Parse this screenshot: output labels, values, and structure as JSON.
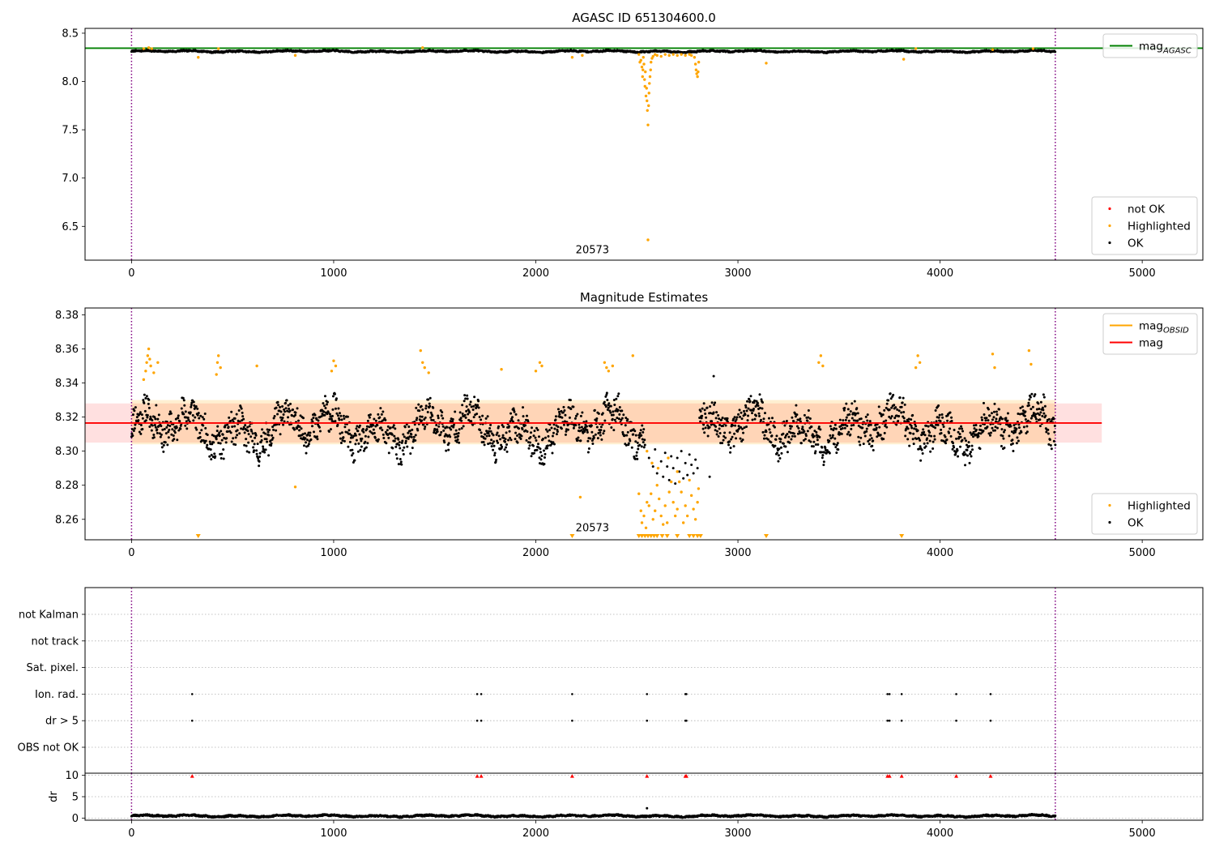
{
  "chart_data": [
    {
      "id": "top",
      "type": "scatter",
      "title": "AGASC ID 651304600.0",
      "xlim": [
        -230,
        5300
      ],
      "ylim": [
        6.15,
        8.55
      ],
      "xticks": [
        0,
        1000,
        2000,
        3000,
        4000,
        5000
      ],
      "yticks": [
        6.5,
        7.0,
        7.5,
        8.0,
        8.5
      ],
      "ytick_format": 1,
      "vlines": [
        0,
        4570
      ],
      "vline_color": "#800080",
      "annotations": [
        {
          "text": "20573",
          "x": 2280,
          "y": 6.22
        }
      ],
      "hlines": [
        {
          "name": "mag",
          "sub": "AGASC",
          "y": 8.345,
          "xmin": -230,
          "xmax": 5300,
          "color": "#008000"
        }
      ],
      "ok_series": {
        "name": "OK",
        "color": "#000000",
        "base": 8.312,
        "amp": 0.012
      },
      "points": {
        "orange": [
          [
            60,
            8.34
          ],
          [
            85,
            8.35
          ],
          [
            100,
            8.34
          ],
          [
            330,
            8.25
          ],
          [
            430,
            8.34
          ],
          [
            810,
            8.27
          ],
          [
            1440,
            8.35
          ],
          [
            2180,
            8.25
          ],
          [
            2230,
            8.27
          ],
          [
            2510,
            8.28
          ],
          [
            2515,
            8.2
          ],
          [
            2520,
            8.22
          ],
          [
            2525,
            8.15
          ],
          [
            2528,
            8.05
          ],
          [
            2530,
            8.12
          ],
          [
            2532,
            8.25
          ],
          [
            2535,
            8.18
          ],
          [
            2538,
            8.02
          ],
          [
            2540,
            7.95
          ],
          [
            2542,
            8.1
          ],
          [
            2545,
            7.85
          ],
          [
            2548,
            7.93
          ],
          [
            2550,
            7.8
          ],
          [
            2552,
            7.7
          ],
          [
            2555,
            7.55
          ],
          [
            2558,
            7.75
          ],
          [
            2560,
            7.88
          ],
          [
            2562,
            7.98
          ],
          [
            2565,
            8.05
          ],
          [
            2568,
            8.12
          ],
          [
            2570,
            8.2
          ],
          [
            2575,
            8.24
          ],
          [
            2580,
            8.26
          ],
          [
            2590,
            8.28
          ],
          [
            2600,
            8.27
          ],
          [
            2620,
            8.26
          ],
          [
            2640,
            8.28
          ],
          [
            2660,
            8.27
          ],
          [
            2680,
            8.28
          ],
          [
            2700,
            8.27
          ],
          [
            2720,
            8.28
          ],
          [
            2740,
            8.27
          ],
          [
            2760,
            8.28
          ],
          [
            2770,
            8.27
          ],
          [
            2785,
            8.25
          ],
          [
            2790,
            8.18
          ],
          [
            2793,
            8.12
          ],
          [
            2796,
            8.08
          ],
          [
            2800,
            8.05
          ],
          [
            2803,
            8.1
          ],
          [
            2806,
            8.2
          ],
          [
            2555,
            6.36
          ],
          [
            3140,
            8.19
          ],
          [
            3820,
            8.23
          ],
          [
            3880,
            8.34
          ],
          [
            4260,
            8.33
          ],
          [
            4460,
            8.34
          ]
        ],
        "red": [],
        "black_extra": []
      },
      "legends": [
        {
          "position": "upper-right",
          "entries": [
            {
              "label": "mag",
              "sub": "AGASC",
              "kind": "line",
              "color": "#008000"
            }
          ]
        },
        {
          "position": "lower-right",
          "entries": [
            {
              "label": "not OK",
              "kind": "dot",
              "color": "#ff0000"
            },
            {
              "label": "Highlighted",
              "kind": "dot",
              "color": "#ffa500"
            },
            {
              "label": "OK",
              "kind": "dot",
              "color": "#000000"
            }
          ]
        }
      ]
    },
    {
      "id": "middle",
      "type": "scatter",
      "title": "Magnitude Estimates",
      "xlim": [
        -230,
        5300
      ],
      "ylim": [
        8.248,
        8.384
      ],
      "xticks": [
        0,
        1000,
        2000,
        3000,
        4000,
        5000
      ],
      "yticks": [
        8.26,
        8.28,
        8.3,
        8.32,
        8.34,
        8.36,
        8.38
      ],
      "ytick_format": 2,
      "vlines": [
        0,
        4570
      ],
      "vline_color": "#800080",
      "annotations": [
        {
          "text": "20573",
          "x": 2280,
          "y": 8.253
        }
      ],
      "bands": [
        {
          "ymin": 8.305,
          "ymax": 8.328,
          "xmin": -230,
          "xmax": 4800,
          "color": "#ff0000",
          "opacity": 0.12
        },
        {
          "ymin": 8.304,
          "ymax": 8.33,
          "xmin": 0,
          "xmax": 4570,
          "color": "#ffa500",
          "opacity": 0.18
        }
      ],
      "hlines": [
        {
          "name": "mag",
          "sub": "",
          "y": 8.3165,
          "xmin": -230,
          "xmax": 4800,
          "color": "#ff0000"
        }
      ],
      "ok_series": {
        "name": "OK",
        "color": "#000000",
        "base": 8.313,
        "amp": 0.016
      },
      "points": {
        "orange": [
          [
            60,
            8.342
          ],
          [
            70,
            8.347
          ],
          [
            75,
            8.352
          ],
          [
            80,
            8.356
          ],
          [
            85,
            8.36
          ],
          [
            90,
            8.354
          ],
          [
            95,
            8.35
          ],
          [
            110,
            8.346
          ],
          [
            130,
            8.352
          ],
          [
            420,
            8.345
          ],
          [
            425,
            8.352
          ],
          [
            430,
            8.356
          ],
          [
            440,
            8.349
          ],
          [
            620,
            8.35
          ],
          [
            990,
            8.347
          ],
          [
            1000,
            8.353
          ],
          [
            1010,
            8.35
          ],
          [
            810,
            8.279
          ],
          [
            1430,
            8.359
          ],
          [
            1440,
            8.352
          ],
          [
            1450,
            8.349
          ],
          [
            1470,
            8.346
          ],
          [
            1830,
            8.348
          ],
          [
            2000,
            8.347
          ],
          [
            2020,
            8.352
          ],
          [
            2030,
            8.35
          ],
          [
            2220,
            8.273
          ],
          [
            2340,
            8.352
          ],
          [
            2350,
            8.349
          ],
          [
            2360,
            8.347
          ],
          [
            2380,
            8.35
          ],
          [
            2480,
            8.356
          ],
          [
            3400,
            8.352
          ],
          [
            3410,
            8.356
          ],
          [
            3420,
            8.35
          ],
          [
            3880,
            8.349
          ],
          [
            3890,
            8.356
          ],
          [
            3900,
            8.352
          ],
          [
            4260,
            8.357
          ],
          [
            4270,
            8.349
          ],
          [
            4440,
            8.359
          ],
          [
            4450,
            8.351
          ],
          [
            2510,
            8.275
          ],
          [
            2520,
            8.265
          ],
          [
            2525,
            8.258
          ],
          [
            2535,
            8.262
          ],
          [
            2545,
            8.255
          ],
          [
            2550,
            8.27
          ],
          [
            2560,
            8.268
          ],
          [
            2570,
            8.275
          ],
          [
            2580,
            8.26
          ],
          [
            2590,
            8.265
          ],
          [
            2600,
            8.28
          ],
          [
            2610,
            8.272
          ],
          [
            2620,
            8.262
          ],
          [
            2630,
            8.257
          ],
          [
            2640,
            8.268
          ],
          [
            2650,
            8.258
          ],
          [
            2660,
            8.276
          ],
          [
            2670,
            8.282
          ],
          [
            2680,
            8.27
          ],
          [
            2690,
            8.262
          ],
          [
            2700,
            8.266
          ],
          [
            2710,
            8.282
          ],
          [
            2720,
            8.276
          ],
          [
            2730,
            8.258
          ],
          [
            2740,
            8.268
          ],
          [
            2750,
            8.262
          ],
          [
            2760,
            8.283
          ],
          [
            2770,
            8.274
          ],
          [
            2780,
            8.266
          ],
          [
            2790,
            8.26
          ],
          [
            2800,
            8.27
          ],
          [
            2805,
            8.278
          ],
          [
            2550,
            8.3
          ],
          [
            2575,
            8.293
          ],
          [
            2605,
            8.29
          ],
          [
            2655,
            8.296
          ],
          [
            2700,
            8.288
          ]
        ],
        "orange_triangles": [
          330,
          2180,
          2510,
          2525,
          2540,
          2555,
          2570,
          2585,
          2600,
          2625,
          2650,
          2700,
          2760,
          2780,
          2800,
          2815,
          3140,
          3810
        ],
        "black_extra": [
          [
            2560,
            8.296
          ],
          [
            2580,
            8.291
          ],
          [
            2590,
            8.301
          ],
          [
            2600,
            8.287
          ],
          [
            2620,
            8.294
          ],
          [
            2630,
            8.285
          ],
          [
            2640,
            8.299
          ],
          [
            2650,
            8.291
          ],
          [
            2660,
            8.283
          ],
          [
            2670,
            8.297
          ],
          [
            2680,
            8.29
          ],
          [
            2690,
            8.281
          ],
          [
            2700,
            8.296
          ],
          [
            2710,
            8.288
          ],
          [
            2720,
            8.3
          ],
          [
            2730,
            8.284
          ],
          [
            2740,
            8.293
          ],
          [
            2750,
            8.286
          ],
          [
            2760,
            8.298
          ],
          [
            2770,
            8.292
          ],
          [
            2780,
            8.287
          ],
          [
            2790,
            8.295
          ],
          [
            2800,
            8.29
          ],
          [
            2860,
            8.285
          ],
          [
            2880,
            8.344
          ]
        ]
      },
      "legends": [
        {
          "position": "upper-right",
          "entries": [
            {
              "label": "mag",
              "sub": "OBSID",
              "kind": "line",
              "color": "#ffa500"
            },
            {
              "label": "mag",
              "sub": "",
              "kind": "line",
              "color": "#ff0000"
            }
          ]
        },
        {
          "position": "lower-right",
          "entries": [
            {
              "label": "Highlighted",
              "kind": "dot",
              "color": "#ffa500"
            },
            {
              "label": "OK",
              "kind": "dot",
              "color": "#000000"
            }
          ]
        }
      ]
    },
    {
      "id": "flags",
      "type": "scatter",
      "xlim": [
        -230,
        5300
      ],
      "categories": [
        "not Kalman",
        "not track",
        "Sat. pixel.",
        "Ion. rad.",
        "dr > 5",
        "OBS not OK"
      ],
      "flag_points": {
        "Ion. rad.": [
          300,
          1710,
          1730,
          2180,
          2550,
          2740,
          2745,
          3740,
          3750,
          3810,
          4080,
          4250
        ],
        "dr > 5": [
          300,
          1710,
          1730,
          2180,
          2550,
          2740,
          2745,
          3740,
          3750,
          3810,
          4080,
          4250
        ]
      },
      "vlines": [
        0,
        4570
      ],
      "vline_color": "#800080"
    },
    {
      "id": "dr",
      "type": "scatter",
      "ylabel": "dr",
      "xlim": [
        -230,
        5300
      ],
      "ylim": [
        -0.5,
        10.5
      ],
      "xticks": [
        0,
        1000,
        2000,
        3000,
        4000,
        5000
      ],
      "yticks": [
        0,
        5,
        10
      ],
      "ytick_format": 0,
      "vlines": [
        0,
        4570
      ],
      "vline_color": "#800080",
      "ok_series": {
        "name": "dr",
        "color": "#000000",
        "base": 0.5,
        "amp": 0.3
      },
      "red_triangles": [
        300,
        1710,
        1730,
        2180,
        2550,
        2740,
        2745,
        3740,
        3750,
        3810,
        4080,
        4250
      ],
      "points": {
        "black_extra": [
          [
            2550,
            2.3
          ]
        ]
      }
    }
  ]
}
